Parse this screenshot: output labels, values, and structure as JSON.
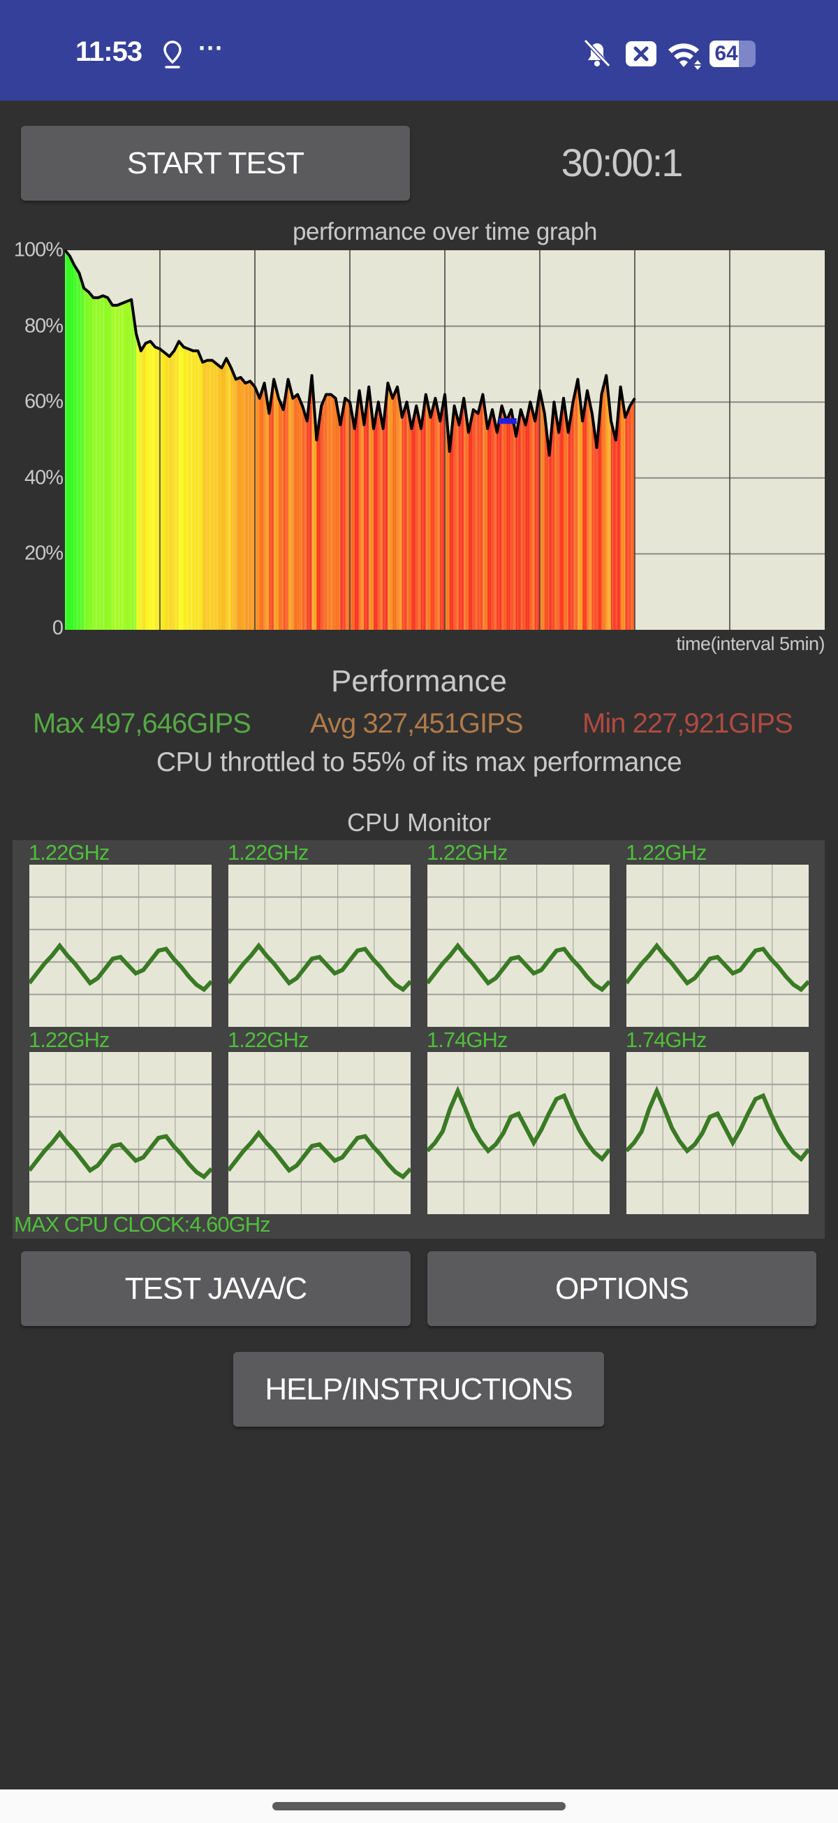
{
  "status_bar": {
    "time": "11:53",
    "icons": [
      "location-pin-icon",
      "more-dots-icon",
      "bell-muted-icon",
      "x-box-icon",
      "wifi-icon",
      "battery-icon"
    ],
    "more": "···",
    "battery_level": "64",
    "background_color": "#35409a"
  },
  "toolbar": {
    "start_label": "START TEST",
    "timer": "30:00:1"
  },
  "chart_data": {
    "type": "area",
    "title": "performance over time graph",
    "xlabel": "time(interval 5min)",
    "ylabel": "",
    "xlim": [
      0,
      40
    ],
    "ylim": [
      0,
      100
    ],
    "x_interval": 5,
    "y_ticks": [
      "100%",
      "80%",
      "60%",
      "40%",
      "20%",
      "0"
    ],
    "grid": true,
    "x_step": 0.25,
    "values": [
      100,
      98.5,
      96,
      94,
      90,
      89,
      87.5,
      87.5,
      88,
      87.5,
      85.5,
      85.5,
      86,
      86.5,
      87,
      78,
      73.5,
      75.5,
      76,
      74.5,
      74,
      73,
      72,
      73.5,
      76,
      74.5,
      74,
      73.5,
      73.5,
      70.5,
      71,
      71,
      70,
      69,
      71.5,
      69,
      66,
      66.5,
      65,
      65.5,
      64,
      61,
      65,
      57,
      66,
      61,
      58,
      66,
      61,
      62,
      59,
      55,
      67,
      50,
      59,
      62,
      62,
      61,
      54,
      61,
      60,
      53,
      63,
      54,
      64,
      53,
      60,
      53,
      65,
      61,
      64,
      56,
      60,
      53,
      59,
      53,
      62,
      56,
      61,
      55,
      62,
      47,
      59,
      54,
      61,
      52,
      58,
      57,
      62,
      53,
      58,
      52,
      59,
      55,
      58,
      51,
      58,
      54,
      60,
      55,
      63,
      57,
      46,
      60,
      52,
      61,
      52,
      60,
      66,
      55,
      63,
      57,
      48,
      62,
      67,
      55,
      50,
      64,
      56,
      59,
      61
    ],
    "marker": {
      "x": 23.3,
      "y": 55,
      "color": "#2020e0"
    },
    "line_color": "#000000",
    "fill_colors": {
      "high": "#7fff44",
      "mid": "#ffff50",
      "low": "#f04a22"
    }
  },
  "performance": {
    "heading": "Performance",
    "max": "Max 497,646GIPS",
    "avg": "Avg 327,451GIPS",
    "min": "Min 227,921GIPS",
    "throttle": "CPU throttled to 55% of its max performance",
    "colors": {
      "max": "#56a845",
      "avg": "#b07a4a",
      "min": "#b04a40"
    }
  },
  "cpu_monitor": {
    "heading": "CPU Monitor",
    "max_clock": "MAX CPU CLOCK:4.60GHz",
    "line_color": "#3a7a25",
    "cores": [
      {
        "freq": "1.22GHz",
        "history": [
          27,
          33,
          39,
          44,
          50,
          44,
          39,
          33,
          27,
          30,
          36,
          42,
          43,
          38,
          33,
          35,
          41,
          47,
          48,
          42,
          37,
          31,
          26,
          23,
          28
        ]
      },
      {
        "freq": "1.22GHz",
        "history": [
          27,
          33,
          39,
          44,
          50,
          44,
          39,
          33,
          27,
          30,
          36,
          42,
          43,
          38,
          33,
          35,
          41,
          47,
          48,
          42,
          37,
          31,
          26,
          23,
          28
        ]
      },
      {
        "freq": "1.22GHz",
        "history": [
          27,
          33,
          39,
          44,
          50,
          44,
          39,
          33,
          27,
          30,
          36,
          42,
          43,
          38,
          33,
          35,
          41,
          47,
          48,
          42,
          37,
          31,
          26,
          23,
          28
        ]
      },
      {
        "freq": "1.22GHz",
        "history": [
          27,
          33,
          39,
          44,
          50,
          44,
          39,
          33,
          27,
          30,
          36,
          42,
          43,
          38,
          33,
          35,
          41,
          47,
          48,
          42,
          37,
          31,
          26,
          23,
          28
        ]
      },
      {
        "freq": "1.22GHz",
        "history": [
          27,
          33,
          39,
          44,
          50,
          44,
          39,
          33,
          27,
          30,
          36,
          42,
          43,
          38,
          33,
          35,
          41,
          47,
          48,
          42,
          37,
          31,
          26,
          23,
          28
        ]
      },
      {
        "freq": "1.22GHz",
        "history": [
          27,
          33,
          39,
          44,
          50,
          44,
          39,
          33,
          27,
          30,
          36,
          42,
          43,
          38,
          33,
          35,
          41,
          47,
          48,
          42,
          37,
          31,
          26,
          23,
          28
        ]
      },
      {
        "freq": "1.74GHz",
        "history": [
          39,
          44,
          51,
          65,
          76,
          65,
          53,
          45,
          39,
          43,
          50,
          60,
          62,
          53,
          44,
          52,
          62,
          71,
          73,
          62,
          52,
          44,
          38,
          34,
          40
        ]
      },
      {
        "freq": "1.74GHz",
        "history": [
          39,
          44,
          51,
          65,
          76,
          65,
          53,
          45,
          39,
          43,
          50,
          60,
          62,
          53,
          44,
          52,
          62,
          71,
          73,
          62,
          52,
          44,
          38,
          34,
          40
        ]
      }
    ]
  },
  "buttons": {
    "test_java_c": "TEST JAVA/C",
    "options": "OPTIONS",
    "help": "HELP/INSTRUCTIONS"
  }
}
